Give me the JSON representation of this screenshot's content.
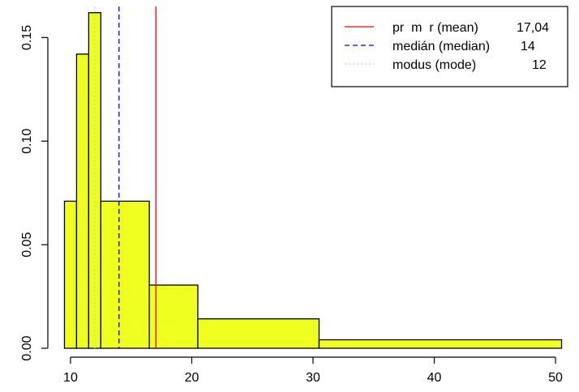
{
  "chart_data": {
    "type": "bar",
    "subtype": "histogram",
    "title": "",
    "xlabel": "",
    "ylabel": "",
    "xlim": [
      9,
      51
    ],
    "ylim": [
      0,
      0.165
    ],
    "x_ticks": [
      10,
      20,
      30,
      40,
      50
    ],
    "y_ticks": [
      0.0,
      0.05,
      0.1,
      0.15
    ],
    "y_tick_labels": [
      "0.00",
      "0.05",
      "0.10",
      "0.15"
    ],
    "bar_fill": "#EFFF1F",
    "bins": [
      {
        "start": 9.5,
        "end": 10.5,
        "density": 0.071
      },
      {
        "start": 10.5,
        "end": 11.5,
        "density": 0.142
      },
      {
        "start": 11.5,
        "end": 12.5,
        "density": 0.162
      },
      {
        "start": 12.5,
        "end": 16.5,
        "density": 0.071
      },
      {
        "start": 16.5,
        "end": 20.5,
        "density": 0.0305
      },
      {
        "start": 20.5,
        "end": 30.5,
        "density": 0.0142
      },
      {
        "start": 30.5,
        "end": 50.5,
        "density": 0.0041
      }
    ],
    "reference_lines": [
      {
        "label": "pr  m  r (mean)",
        "value_text": "17,04",
        "x": 17.04,
        "color": "#FF0000",
        "style": "solid"
      },
      {
        "label": "medián (median)",
        "value_text": "14",
        "x": 14,
        "color": "#0000FF",
        "style": "dashed"
      },
      {
        "label": "modus (mode)",
        "value_text": "12",
        "x": 12,
        "color": "#A0F0A0",
        "style": "dotted"
      }
    ],
    "legend_position": "top-right"
  }
}
